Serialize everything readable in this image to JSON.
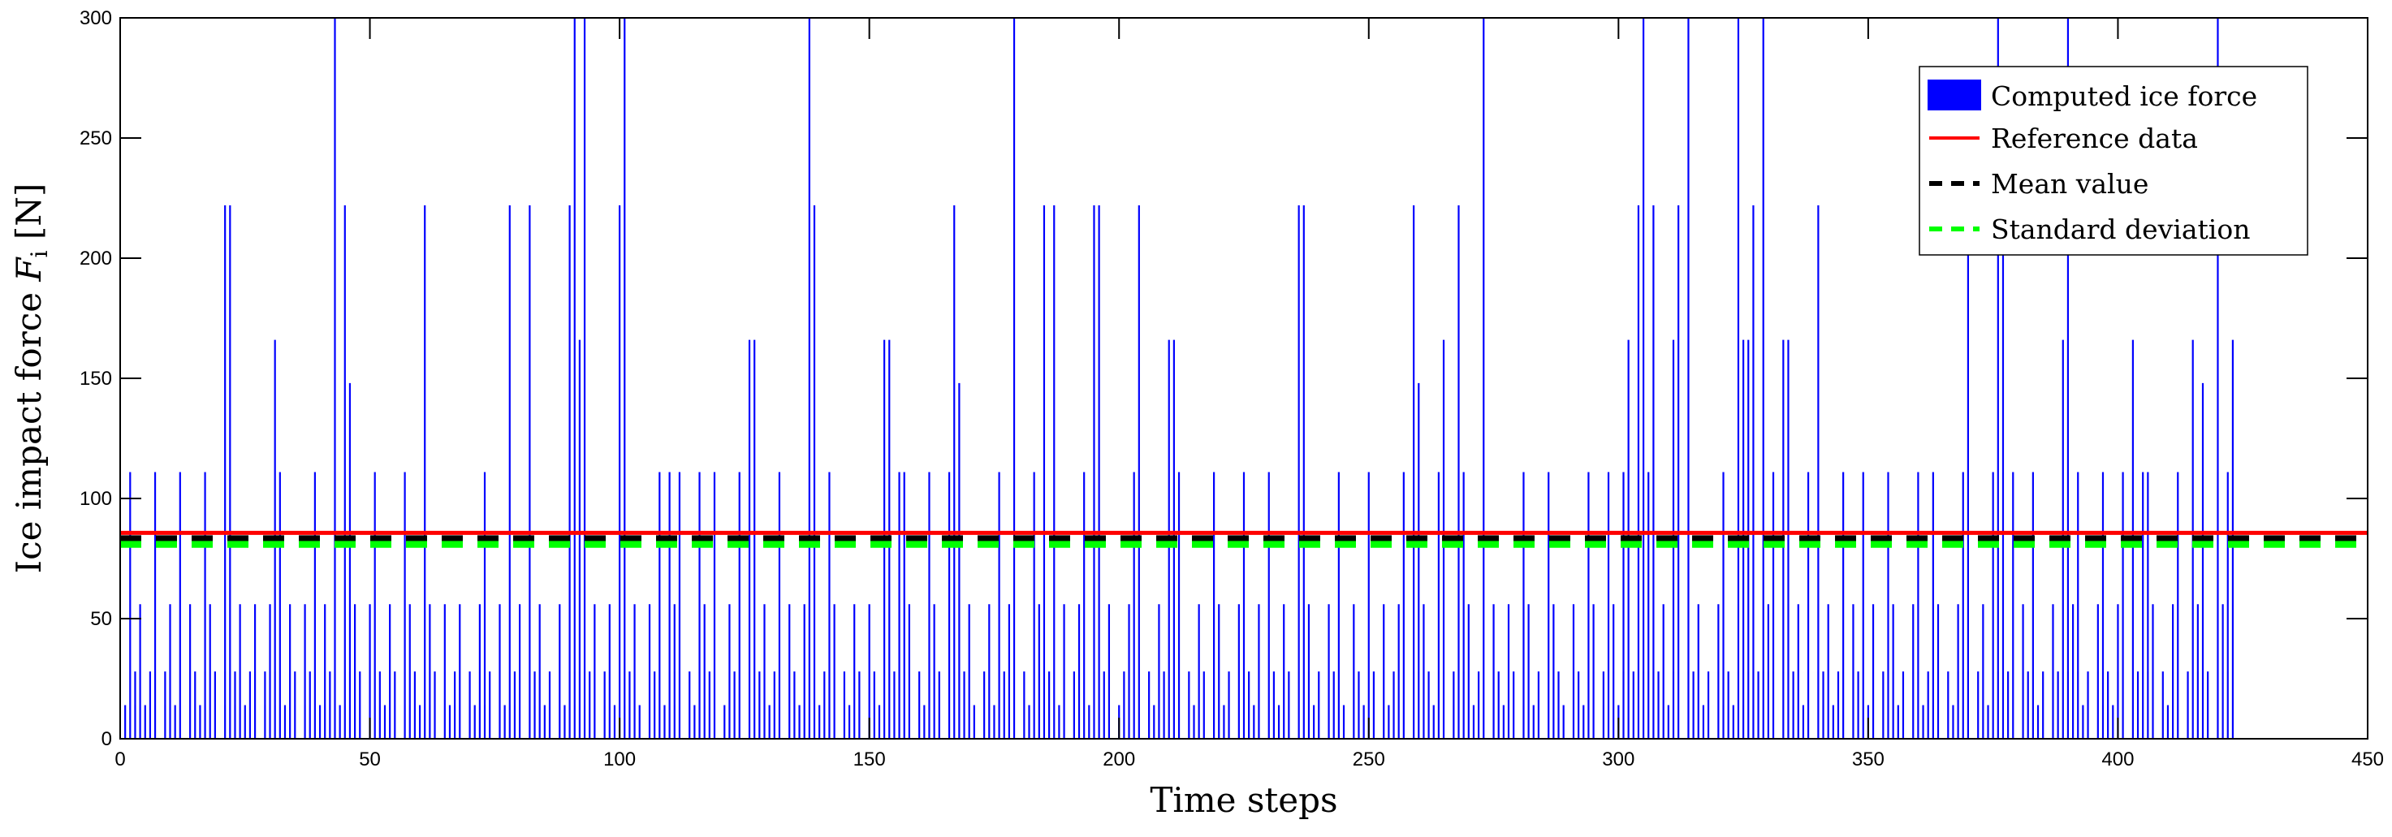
{
  "chart_data": {
    "type": "bar",
    "xlabel": "Time steps",
    "ylabel": "Ice impact force F_i [N]",
    "ylabel_text": "Ice impact force",
    "ylabel_symbol": "F",
    "ylabel_subscript": "i",
    "ylabel_unit": "[N]",
    "xlim": [
      0,
      450
    ],
    "ylim": [
      0,
      300
    ],
    "xticks": [
      0,
      50,
      100,
      150,
      200,
      250,
      300,
      350,
      400,
      450
    ],
    "yticks": [
      0,
      50,
      100,
      150,
      200,
      250,
      300
    ],
    "grid": false,
    "legend_position": "top-right",
    "legend": [
      {
        "label": "Computed ice force",
        "kind": "patch",
        "color": "#0000ff"
      },
      {
        "label": "Reference data",
        "kind": "line",
        "color": "#ff0000"
      },
      {
        "label": "Mean value",
        "kind": "dashed",
        "color": "#000000"
      },
      {
        "label": "Standard deviation",
        "kind": "dashed",
        "color": "#00ff00"
      }
    ],
    "series": [
      {
        "name": "Computed ice force",
        "color": "#0000ff",
        "x_start": 1,
        "values": [
          14,
          111,
          28,
          56,
          14,
          28,
          111,
          0,
          28,
          56,
          14,
          111,
          0,
          56,
          28,
          14,
          111,
          56,
          28,
          0,
          222,
          222,
          28,
          56,
          14,
          28,
          56,
          0,
          28,
          56,
          166,
          111,
          14,
          56,
          28,
          0,
          56,
          28,
          111,
          14,
          56,
          28,
          300,
          14,
          222,
          148,
          56,
          28,
          0,
          56,
          111,
          28,
          14,
          56,
          28,
          0,
          111,
          56,
          28,
          14,
          222,
          56,
          28,
          0,
          56,
          14,
          28,
          56,
          0,
          28,
          14,
          56,
          111,
          28,
          0,
          56,
          14,
          222,
          28,
          56,
          0,
          222,
          28,
          56,
          14,
          28,
          0,
          56,
          14,
          222,
          300,
          166,
          300,
          28,
          56,
          0,
          28,
          56,
          14,
          222,
          300,
          28,
          56,
          14,
          0,
          56,
          28,
          111,
          14,
          111,
          56,
          111,
          0,
          28,
          14,
          111,
          56,
          28,
          111,
          0,
          14,
          56,
          28,
          111,
          0,
          166,
          166,
          28,
          56,
          14,
          28,
          111,
          0,
          56,
          28,
          14,
          56,
          300,
          222,
          14,
          28,
          111,
          56,
          0,
          28,
          14,
          56,
          28,
          0,
          56,
          28,
          14,
          166,
          166,
          28,
          111,
          111,
          56,
          0,
          28,
          14,
          111,
          56,
          28,
          0,
          111,
          222,
          148,
          28,
          56,
          14,
          0,
          28,
          56,
          14,
          111,
          28,
          56,
          300,
          0,
          28,
          14,
          111,
          56,
          222,
          28,
          222,
          14,
          56,
          0,
          28,
          56,
          111,
          14,
          222,
          222,
          28,
          56,
          0,
          14,
          28,
          56,
          111,
          222,
          0,
          28,
          14,
          56,
          28,
          166,
          166,
          111,
          0,
          28,
          14,
          56,
          28,
          0,
          111,
          56,
          14,
          28,
          0,
          56,
          111,
          28,
          14,
          56,
          0,
          111,
          28,
          14,
          56,
          28,
          0,
          222,
          222,
          56,
          14,
          28,
          0,
          56,
          28,
          111,
          14,
          0,
          56,
          28,
          14,
          111,
          28,
          0,
          56,
          14,
          28,
          56,
          111,
          0,
          222,
          148,
          56,
          28,
          14,
          111,
          166,
          0,
          28,
          222,
          111,
          56,
          14,
          28,
          300,
          0,
          56,
          28,
          14,
          56,
          28,
          0,
          111,
          56,
          14,
          28,
          0,
          111,
          56,
          28,
          14,
          0,
          56,
          28,
          14,
          111,
          56,
          0,
          28,
          111,
          56,
          14,
          111,
          166,
          28,
          222,
          300,
          111,
          222,
          28,
          56,
          14,
          166,
          222,
          0,
          300,
          28,
          56,
          14,
          28,
          0,
          56,
          111,
          28,
          14,
          300,
          166,
          166,
          222,
          28,
          300,
          56,
          111,
          0,
          166,
          166,
          28,
          56,
          14,
          111,
          0,
          222,
          28,
          56,
          14,
          28,
          111,
          0,
          56,
          28,
          111,
          14,
          56,
          0,
          28,
          111,
          56,
          14,
          28,
          0,
          56,
          111,
          14,
          28,
          111,
          56,
          0,
          28,
          14,
          56,
          111,
          222,
          0,
          28,
          56,
          14,
          111,
          300,
          222,
          28,
          111,
          0,
          56,
          28,
          111,
          14,
          28,
          0,
          56,
          28,
          166,
          300,
          56,
          111,
          14,
          28,
          0,
          56,
          111,
          28,
          14,
          56,
          111,
          0,
          166,
          28,
          111,
          111,
          56,
          0,
          28,
          14,
          56,
          111,
          0,
          28,
          166,
          56,
          148,
          28,
          0,
          300,
          56,
          111,
          166,
          0
        ]
      },
      {
        "name": "Reference data",
        "color": "#ff0000",
        "value": 85.7
      },
      {
        "name": "Mean value",
        "color": "#000000",
        "value": 83.5
      },
      {
        "name": "Standard deviation",
        "color": "#00ff00",
        "value": 81.0
      }
    ]
  }
}
